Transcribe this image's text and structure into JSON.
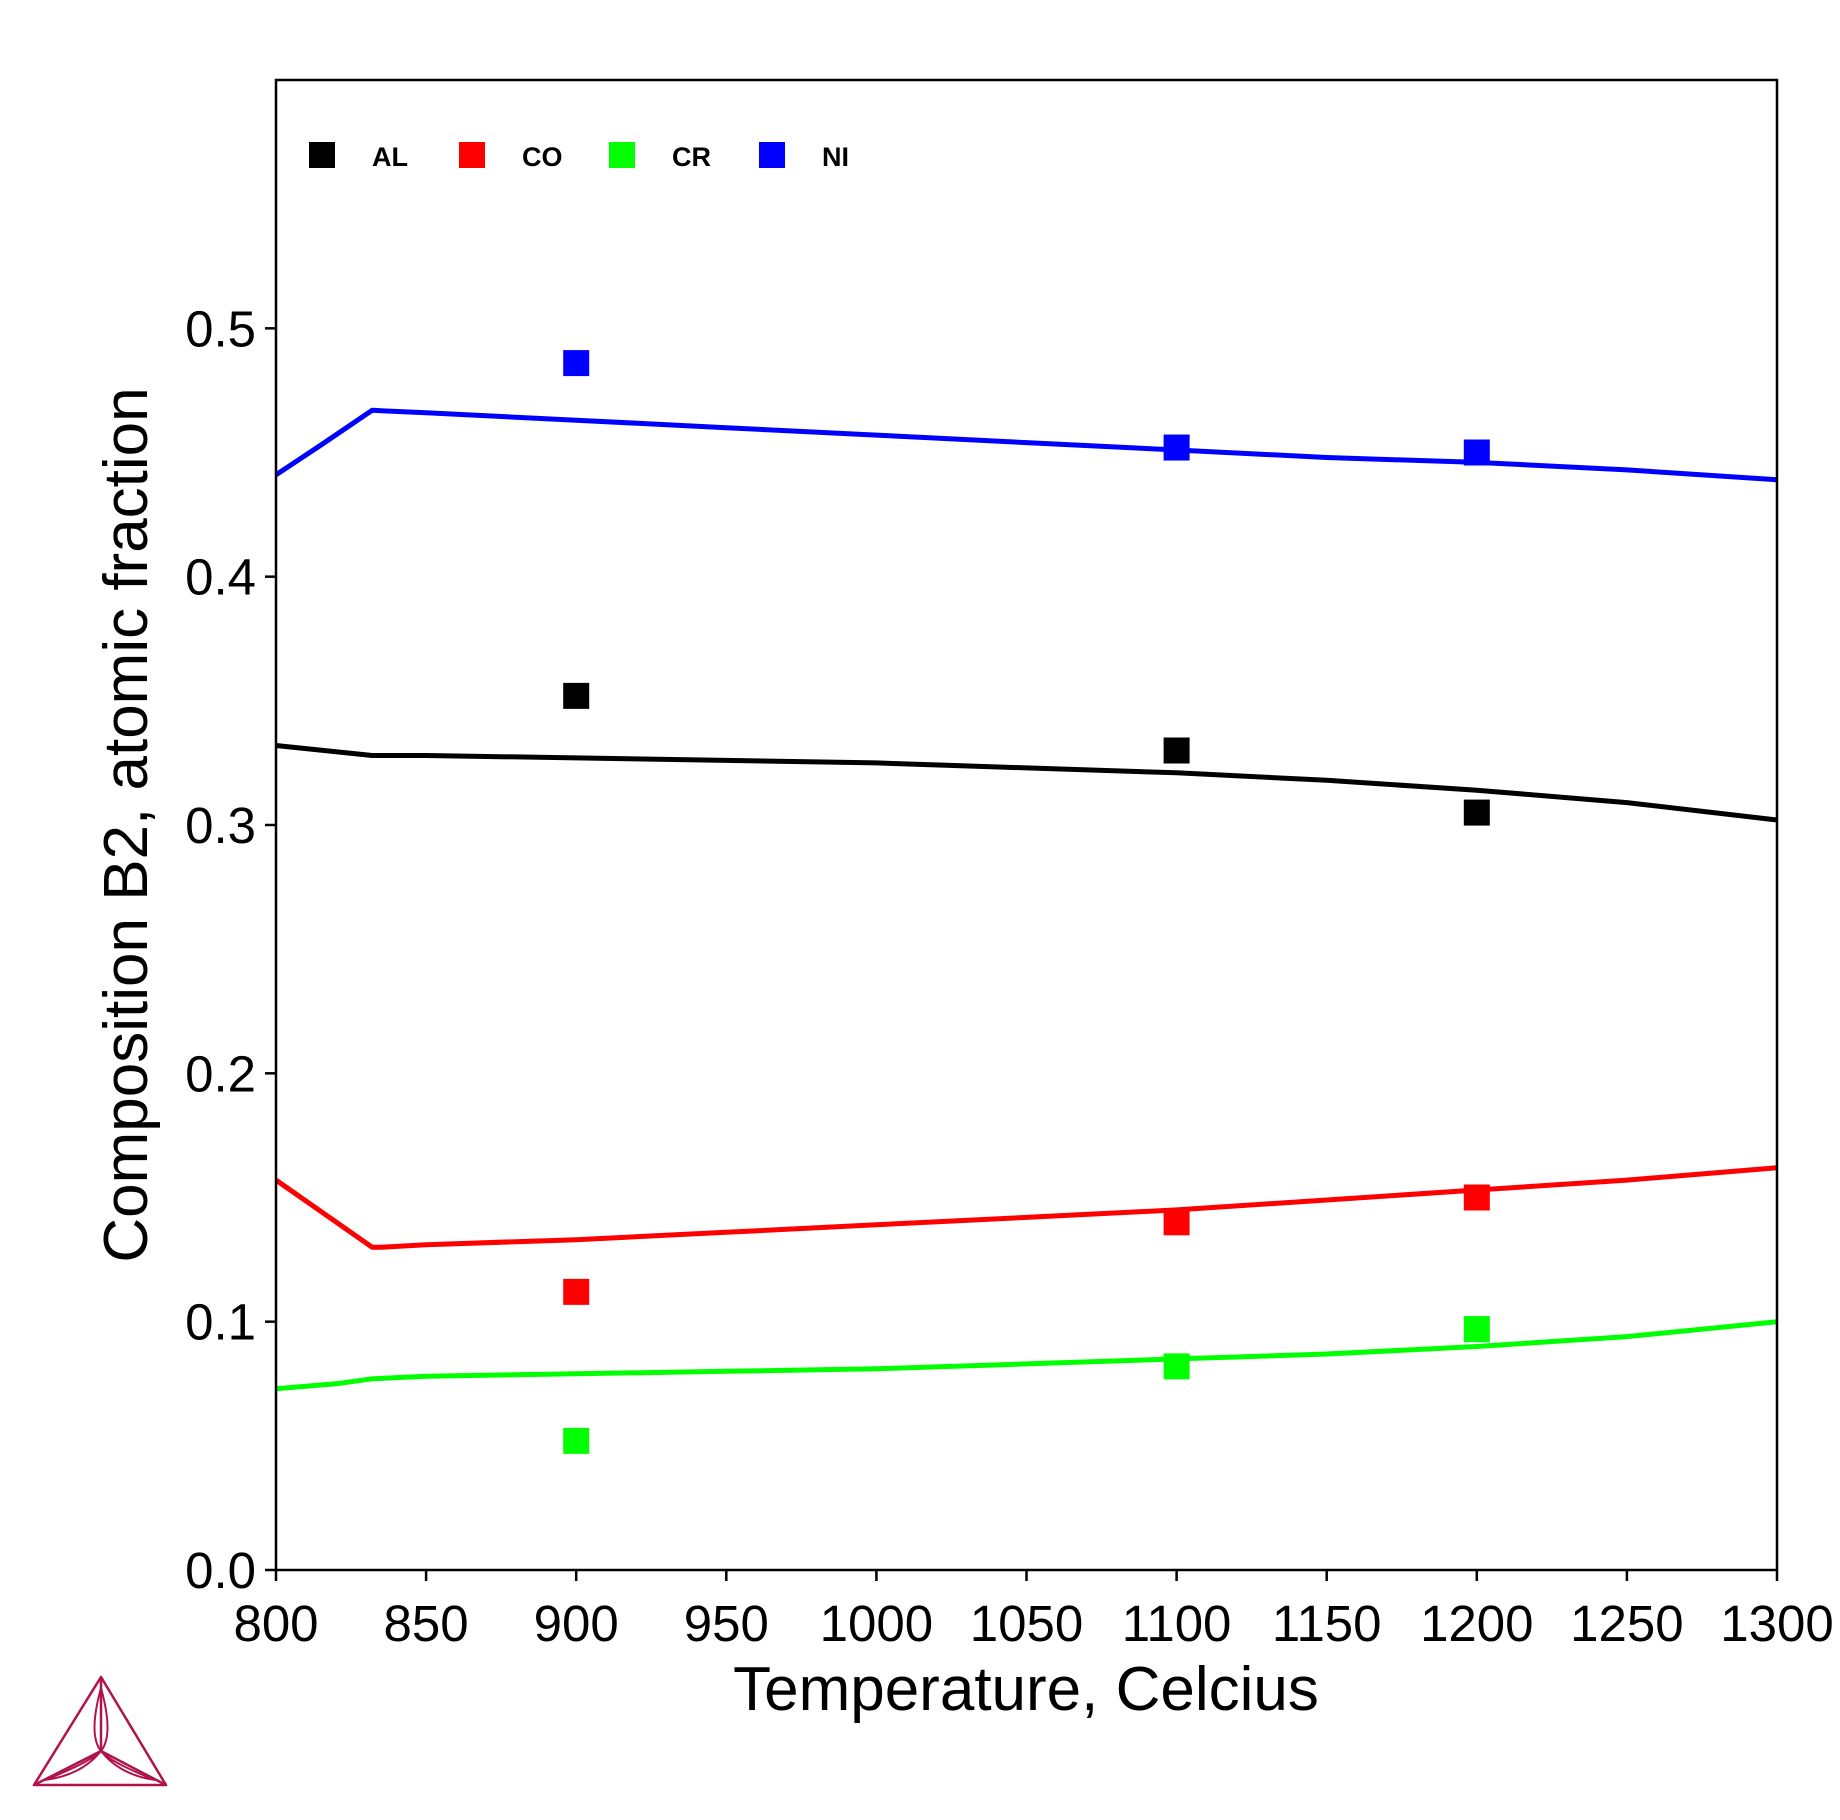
{
  "logo": {
    "icon": "thermo-calc-triangle-logo",
    "color": "#b0134b"
  },
  "chart_data": {
    "type": "line",
    "title": "",
    "xlabel": "Temperature, Celcius",
    "ylabel": "Composition B2, atomic fraction",
    "xlim": [
      800,
      1300
    ],
    "ylim": [
      0,
      0.6
    ],
    "x_ticks": [
      800,
      850,
      900,
      950,
      1000,
      1050,
      1100,
      1150,
      1200,
      1250,
      1300
    ],
    "x_tick_labels": [
      "800",
      "850",
      "900",
      "950",
      "1000",
      "1050",
      "1100",
      "1150",
      "1200",
      "1250",
      "1300"
    ],
    "y_ticks": [
      0,
      0.1,
      0.2,
      0.3,
      0.4,
      0.5
    ],
    "y_tick_labels": [
      "0.0",
      "0.1",
      "0.2",
      "0.3",
      "0.4",
      "0.5"
    ],
    "grid": false,
    "legend_position": "top-left",
    "series": [
      {
        "name": "AL",
        "color": "#000000",
        "line": {
          "x": [
            800,
            832,
            850,
            900,
            950,
            1000,
            1050,
            1100,
            1150,
            1200,
            1250,
            1300
          ],
          "y": [
            0.332,
            0.328,
            0.328,
            0.327,
            0.326,
            0.325,
            0.323,
            0.321,
            0.318,
            0.314,
            0.309,
            0.302
          ]
        },
        "points": {
          "x": [
            900,
            1100,
            1200
          ],
          "y": [
            0.352,
            0.33,
            0.305
          ]
        }
      },
      {
        "name": "CO",
        "color": "#ff0000",
        "line": {
          "x": [
            800,
            832,
            835,
            850,
            900,
            950,
            1000,
            1050,
            1100,
            1150,
            1200,
            1250,
            1300
          ],
          "y": [
            0.157,
            0.13,
            0.13,
            0.131,
            0.133,
            0.136,
            0.139,
            0.142,
            0.145,
            0.149,
            0.153,
            0.157,
            0.162
          ]
        },
        "points": {
          "x": [
            900,
            1100,
            1200
          ],
          "y": [
            0.112,
            0.14,
            0.15
          ]
        }
      },
      {
        "name": "CR",
        "color": "#00ff00",
        "line": {
          "x": [
            800,
            820,
            832,
            850,
            900,
            950,
            1000,
            1050,
            1100,
            1150,
            1200,
            1250,
            1300
          ],
          "y": [
            0.073,
            0.075,
            0.077,
            0.078,
            0.079,
            0.08,
            0.081,
            0.083,
            0.085,
            0.087,
            0.09,
            0.094,
            0.1
          ]
        },
        "points": {
          "x": [
            900,
            1100,
            1200
          ],
          "y": [
            0.052,
            0.082,
            0.097
          ]
        }
      },
      {
        "name": "NI",
        "color": "#0000ff",
        "line": {
          "x": [
            800,
            815,
            832,
            850,
            900,
            950,
            1000,
            1050,
            1100,
            1150,
            1200,
            1250,
            1300
          ],
          "y": [
            0.441,
            0.453,
            0.467,
            0.466,
            0.463,
            0.46,
            0.457,
            0.454,
            0.451,
            0.448,
            0.446,
            0.443,
            0.439
          ]
        },
        "points": {
          "x": [
            900,
            1100,
            1200
          ],
          "y": [
            0.486,
            0.452,
            0.45
          ]
        }
      }
    ]
  }
}
